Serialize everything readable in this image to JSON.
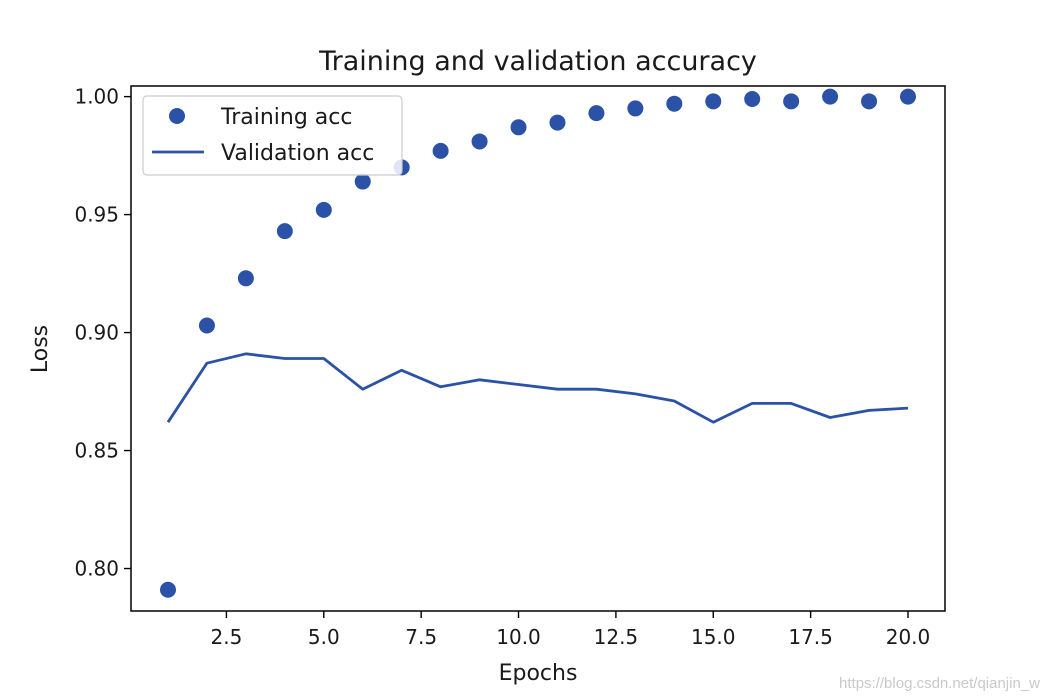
{
  "chart_data": {
    "type": "line",
    "title": "Training and validation accuracy",
    "xlabel": "Epochs",
    "ylabel": "Loss",
    "xlim": [
      0.05,
      20.95
    ],
    "ylim": [
      0.782,
      1.0045
    ],
    "xticks": [
      2.5,
      5.0,
      7.5,
      10.0,
      12.5,
      15.0,
      17.5,
      20.0
    ],
    "xtick_labels": [
      "2.5",
      "5.0",
      "7.5",
      "10.0",
      "12.5",
      "15.0",
      "17.5",
      "20.0"
    ],
    "yticks": [
      0.8,
      0.85,
      0.9,
      0.95,
      1.0
    ],
    "ytick_labels": [
      "0.80",
      "0.85",
      "0.90",
      "0.95",
      "1.00"
    ],
    "grid": false,
    "legend_position": "top-left",
    "series": [
      {
        "name": "Training acc",
        "style": "scatter",
        "color": "#2b52a6",
        "x": [
          1,
          2,
          3,
          4,
          5,
          6,
          7,
          8,
          9,
          10,
          11,
          12,
          13,
          14,
          15,
          16,
          17,
          18,
          19,
          20
        ],
        "values": [
          0.791,
          0.903,
          0.923,
          0.943,
          0.952,
          0.964,
          0.97,
          0.977,
          0.981,
          0.987,
          0.989,
          0.993,
          0.995,
          0.997,
          0.998,
          0.999,
          0.998,
          1.0,
          0.998,
          1.0
        ]
      },
      {
        "name": "Validation acc",
        "style": "line",
        "color": "#2b52a6",
        "x": [
          1,
          2,
          3,
          4,
          5,
          6,
          7,
          8,
          9,
          10,
          11,
          12,
          13,
          14,
          15,
          16,
          17,
          18,
          19,
          20
        ],
        "values": [
          0.862,
          0.887,
          0.891,
          0.889,
          0.889,
          0.876,
          0.884,
          0.877,
          0.88,
          0.878,
          0.876,
          0.876,
          0.874,
          0.871,
          0.862,
          0.87,
          0.87,
          0.864,
          0.867,
          0.868
        ]
      }
    ]
  },
  "watermark": "https://blog.csdn.net/qianjin_w"
}
